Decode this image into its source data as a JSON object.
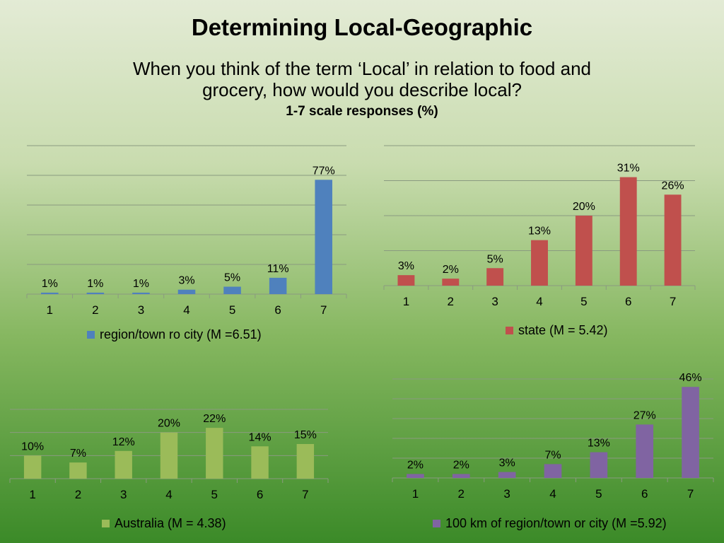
{
  "slide": {
    "title": "Determining Local-Geographic",
    "subtitle": "When you think of the term ‘Local’ in relation to food and grocery, how would you describe local?",
    "scale_note": "1-7 scale responses (%)"
  },
  "chart_data": [
    {
      "type": "bar",
      "categories": [
        "1",
        "2",
        "3",
        "4",
        "5",
        "6",
        "7"
      ],
      "series": [
        {
          "name": "region/town ro city (M =6.51)",
          "values": [
            1,
            1,
            1,
            3,
            5,
            11,
            77
          ]
        }
      ],
      "data_labels": [
        "1%",
        "1%",
        "1%",
        "3%",
        "5%",
        "11%",
        "77%"
      ],
      "ylim": [
        0,
        100
      ],
      "grid": true,
      "legend": "bottom",
      "color": "#4f81bd"
    },
    {
      "type": "bar",
      "categories": [
        "1",
        "2",
        "3",
        "4",
        "5",
        "6",
        "7"
      ],
      "series": [
        {
          "name": "state (M = 5.42)",
          "values": [
            3,
            2,
            5,
            13,
            20,
            31,
            26
          ]
        }
      ],
      "data_labels": [
        "3%",
        "2%",
        "5%",
        "13%",
        "20%",
        "31%",
        "26%"
      ],
      "ylim": [
        0,
        40
      ],
      "grid": true,
      "legend": "bottom",
      "color": "#c0504d"
    },
    {
      "type": "bar",
      "categories": [
        "1",
        "2",
        "3",
        "4",
        "5",
        "6",
        "7"
      ],
      "series": [
        {
          "name": "Australia (M = 4.38)",
          "values": [
            10,
            7,
            12,
            20,
            22,
            14,
            15
          ]
        }
      ],
      "data_labels": [
        "10%",
        "7%",
        "12%",
        "20%",
        "22%",
        "14%",
        "15%"
      ],
      "ylim": [
        0,
        30
      ],
      "grid": true,
      "legend": "bottom",
      "color": "#9bbb59"
    },
    {
      "type": "bar",
      "categories": [
        "1",
        "2",
        "3",
        "4",
        "5",
        "6",
        "7"
      ],
      "series": [
        {
          "name": "100 km of region/town or city (M =5.92)",
          "values": [
            2,
            2,
            3,
            7,
            13,
            27,
            46
          ]
        }
      ],
      "data_labels": [
        "2%",
        "2%",
        "3%",
        "7%",
        "13%",
        "27%",
        "46%"
      ],
      "ylim": [
        0,
        50
      ],
      "grid": true,
      "legend": "bottom",
      "color": "#8064a2"
    }
  ]
}
